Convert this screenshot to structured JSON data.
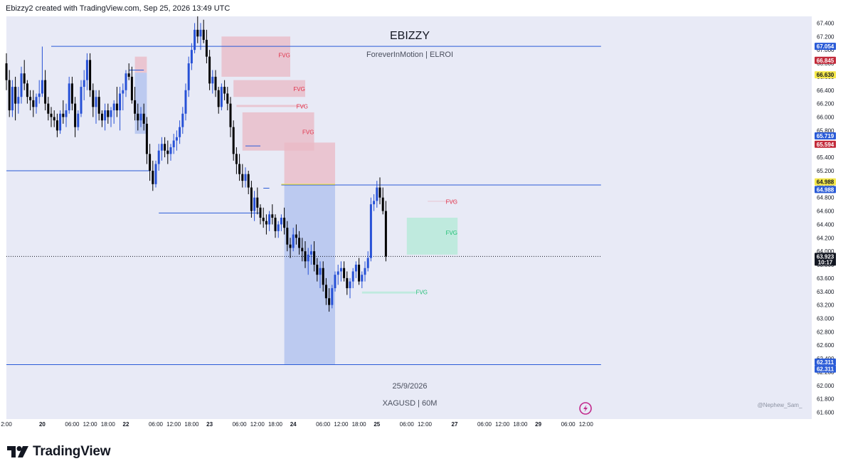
{
  "header": {
    "caption": "Ebizzy2 created with TradingView.com, Sep 25, 2026 13:49 UTC"
  },
  "watermark": {
    "title": "EBIZZY",
    "subtitle": "ForeverInMotion | ELROI",
    "date": "25/9/2026",
    "symbol": "XAGUSD | 60M",
    "credit": "@Nephew_Sam_"
  },
  "footer": {
    "brand": "TradingView"
  },
  "colors": {
    "background": "#e8eaf6",
    "bull": "#2751d6",
    "bear": "#000000",
    "blue_line": "#2a5bd7",
    "bear_fvg": "#e9b8c4",
    "bull_fvg": "#b2ead6",
    "discount_zone": "#aebfee",
    "premium_zone": "#ebb8c4",
    "fvg_red_text": "#e0324a",
    "fvg_green_text": "#1fbf74",
    "yellow": "#f5e84a",
    "red_tag": "#c22a3a"
  },
  "chart_data": {
    "type": "candlestick",
    "symbol": "XAGUSD",
    "timeframe": "60M",
    "ylim": [
      61.5,
      67.5
    ],
    "y_ticks": [
      "67.400",
      "67.200",
      "67.000",
      "66.800",
      "66.600",
      "66.400",
      "66.200",
      "66.000",
      "65.800",
      "65.600",
      "65.400",
      "65.200",
      "65.000",
      "64.800",
      "64.600",
      "64.400",
      "64.200",
      "64.000",
      "63.800",
      "63.600",
      "63.400",
      "63.200",
      "63.000",
      "62.800",
      "62.600",
      "62.400",
      "62.200",
      "62.000",
      "61.800",
      "61.600"
    ],
    "x_ticks": [
      {
        "label": "2:00",
        "i": 0
      },
      {
        "label": "20",
        "i": 12
      },
      {
        "label": "06:00",
        "i": 22
      },
      {
        "label": "12:00",
        "i": 28
      },
      {
        "label": "18:00",
        "i": 34
      },
      {
        "label": "22",
        "i": 40
      },
      {
        "label": "06:00",
        "i": 50
      },
      {
        "label": "12:00",
        "i": 56
      },
      {
        "label": "18:00",
        "i": 62
      },
      {
        "label": "23",
        "i": 68
      },
      {
        "label": "06:00",
        "i": 78
      },
      {
        "label": "12:00",
        "i": 84
      },
      {
        "label": "18:00",
        "i": 90
      },
      {
        "label": "24",
        "i": 96
      },
      {
        "label": "06:00",
        "i": 106
      },
      {
        "label": "12:00",
        "i": 112
      },
      {
        "label": "18:00",
        "i": 118
      },
      {
        "label": "25",
        "i": 124
      },
      {
        "label": "06:00",
        "i": 134
      },
      {
        "label": "12:00",
        "i": 140
      },
      {
        "label": "27",
        "i": 150
      },
      {
        "label": "06:00",
        "i": 160
      },
      {
        "label": "12:00",
        "i": 166
      },
      {
        "label": "18:00",
        "i": 172
      },
      {
        "label": "29",
        "i": 178
      },
      {
        "label": "06:00",
        "i": 188
      },
      {
        "label": "12:00",
        "i": 194
      }
    ],
    "price_tags": [
      {
        "label": "67.054",
        "price": 67.054,
        "bg": "#2a5bd7",
        "fg": "#ffffff"
      },
      {
        "label": "66.845",
        "price": 66.845,
        "bg": "#c22a3a",
        "fg": "#ffffff"
      },
      {
        "label": "66.630",
        "price": 66.63,
        "bg": "#f5e84a",
        "fg": "#131722"
      },
      {
        "label": "65.719",
        "price": 65.719,
        "bg": "#2a5bd7",
        "fg": "#ffffff"
      },
      {
        "label": "65.594",
        "price": 65.594,
        "bg": "#c22a3a",
        "fg": "#ffffff"
      },
      {
        "label": "64.988",
        "price": 65.034,
        "bg": "#f5e84a",
        "fg": "#131722"
      },
      {
        "label": "64.988",
        "price": 64.92,
        "bg": "#2a5bd7",
        "fg": "#ffffff"
      },
      {
        "label": "63.923",
        "price": 63.923,
        "bg": "#131722",
        "fg": "#ffffff",
        "sub": "10:17"
      },
      {
        "label": "62.311",
        "price": 62.35,
        "bg": "#2a5bd7",
        "fg": "#ffffff"
      },
      {
        "label": "62.311",
        "price": 62.245,
        "bg": "#2a5bd7",
        "fg": "#ffffff"
      }
    ],
    "hlines": [
      {
        "price": 67.054,
        "from": 15,
        "to": 199,
        "color": "#2a5bd7"
      },
      {
        "price": 65.2,
        "from": -2,
        "to": 48,
        "color": "#2a5bd7"
      },
      {
        "price": 64.988,
        "from": 92,
        "to": 199,
        "color": "#2a5bd7"
      },
      {
        "price": 62.311,
        "from": -2,
        "to": 199,
        "color": "#2a5bd7"
      },
      {
        "price": 64.57,
        "from": 51,
        "to": 85,
        "color": "#2a5bd7"
      },
      {
        "price": 66.7,
        "from": 41,
        "to": 46,
        "color": "#2a5bd7"
      },
      {
        "price": 65.57,
        "from": 80,
        "to": 85,
        "color": "#2a5bd7"
      },
      {
        "price": 64.94,
        "from": 86,
        "to": 88,
        "color": "#2a5bd7"
      },
      {
        "price": 63.923,
        "from": -2,
        "to": 199,
        "color": "#131722",
        "dotted": true
      }
    ],
    "zones": [
      {
        "kind": "premium",
        "x1": 93,
        "x2": 110,
        "top": 65.62,
        "bottom": 64.988,
        "color": "#ebb8c4"
      },
      {
        "kind": "discount",
        "x1": 93,
        "x2": 110,
        "top": 64.988,
        "bottom": 62.311,
        "color": "#aebfee"
      },
      {
        "kind": "bear-ob",
        "x1": 43,
        "x2": 47,
        "top": 66.9,
        "bottom": 66.66,
        "color": "#ebb8c4"
      },
      {
        "kind": "bull-ob",
        "x1": 43,
        "x2": 47,
        "top": 66.66,
        "bottom": 65.75,
        "color": "#aebfee"
      },
      {
        "kind": "bear-fvg",
        "x1": 72,
        "x2": 95,
        "top": 67.2,
        "bottom": 66.6,
        "color": "#e9b8c4"
      },
      {
        "kind": "bear-fvg",
        "x1": 76,
        "x2": 100,
        "top": 66.55,
        "bottom": 66.3,
        "color": "#e9b8c4"
      },
      {
        "kind": "bear-fvg",
        "x1": 77,
        "x2": 100,
        "top": 66.18,
        "bottom": 66.15,
        "color": "#e9b8c4"
      },
      {
        "kind": "bear-fvg",
        "x1": 79,
        "x2": 103,
        "top": 66.07,
        "bottom": 65.5,
        "color": "#e9b8c4"
      },
      {
        "kind": "bear-fvg",
        "x1": 141,
        "x2": 151,
        "top": 64.75,
        "bottom": 64.74,
        "color": "#e9b8c4"
      },
      {
        "kind": "bull-fvg",
        "x1": 134,
        "x2": 151,
        "top": 64.5,
        "bottom": 63.95,
        "color": "#b2ead6"
      },
      {
        "kind": "bull-fvg",
        "x1": 119,
        "x2": 137,
        "top": 63.4,
        "bottom": 63.37,
        "color": "#b2ead6"
      }
    ],
    "fvg_labels": [
      {
        "text": "FVG",
        "i": 93,
        "price": 66.92,
        "color": "#e0324a"
      },
      {
        "text": "FVG",
        "i": 98,
        "price": 66.42,
        "color": "#e0324a"
      },
      {
        "text": "FVG",
        "i": 99,
        "price": 66.16,
        "color": "#e0324a"
      },
      {
        "text": "FVG",
        "i": 101,
        "price": 65.78,
        "color": "#e0324a"
      },
      {
        "text": "FVG",
        "i": 149,
        "price": 64.74,
        "color": "#e0324a"
      },
      {
        "text": "FVG",
        "i": 149,
        "price": 64.28,
        "color": "#1fbf74"
      },
      {
        "text": "FVG",
        "i": 139,
        "price": 63.39,
        "color": "#1fbf74"
      }
    ],
    "candles": [
      [
        66.8,
        66.95,
        66.4,
        66.55
      ],
      [
        66.55,
        66.7,
        66.0,
        66.1
      ],
      [
        66.1,
        66.55,
        66.0,
        66.45
      ],
      [
        66.45,
        66.6,
        65.95,
        66.2
      ],
      [
        66.2,
        66.45,
        66.05,
        66.3
      ],
      [
        66.3,
        66.75,
        66.2,
        66.65
      ],
      [
        66.65,
        66.85,
        66.4,
        66.5
      ],
      [
        66.5,
        66.55,
        66.2,
        66.3
      ],
      [
        66.3,
        66.4,
        66.1,
        66.25
      ],
      [
        66.25,
        66.4,
        66.0,
        66.15
      ],
      [
        66.15,
        66.35,
        66.05,
        66.3
      ],
      [
        66.3,
        66.55,
        66.2,
        66.35
      ],
      [
        66.35,
        67.05,
        66.3,
        66.55
      ],
      [
        66.55,
        66.7,
        66.1,
        66.2
      ],
      [
        66.2,
        66.3,
        65.95,
        66.05
      ],
      [
        66.05,
        66.15,
        65.85,
        66.0
      ],
      [
        66.0,
        66.1,
        65.85,
        65.95
      ],
      [
        65.95,
        66.05,
        65.7,
        65.8
      ],
      [
        65.8,
        66.1,
        65.75,
        66.05
      ],
      [
        66.05,
        66.25,
        65.9,
        66.0
      ],
      [
        66.0,
        66.2,
        65.85,
        66.1
      ],
      [
        66.1,
        66.6,
        66.05,
        66.5
      ],
      [
        66.5,
        66.6,
        66.1,
        66.2
      ],
      [
        66.2,
        66.3,
        65.7,
        65.85
      ],
      [
        65.85,
        66.1,
        65.8,
        66.05
      ],
      [
        66.05,
        66.55,
        66.0,
        66.45
      ],
      [
        66.45,
        66.7,
        66.25,
        66.55
      ],
      [
        66.55,
        66.95,
        66.4,
        66.85
      ],
      [
        66.85,
        66.95,
        66.3,
        66.4
      ],
      [
        66.4,
        66.5,
        66.0,
        66.15
      ],
      [
        66.15,
        66.4,
        65.9,
        66.3
      ],
      [
        66.3,
        66.4,
        65.95,
        66.05
      ],
      [
        66.05,
        66.1,
        65.85,
        65.95
      ],
      [
        65.95,
        66.2,
        65.8,
        66.1
      ],
      [
        66.1,
        66.2,
        65.9,
        66.0
      ],
      [
        66.0,
        66.15,
        65.85,
        66.1
      ],
      [
        66.1,
        66.25,
        65.9,
        66.2
      ],
      [
        66.2,
        66.45,
        66.0,
        66.1
      ],
      [
        66.1,
        66.45,
        65.8,
        66.35
      ],
      [
        66.35,
        66.5,
        66.1,
        66.4
      ],
      [
        66.4,
        66.7,
        66.3,
        66.65
      ],
      [
        66.65,
        66.8,
        66.55,
        66.6
      ],
      [
        66.6,
        66.75,
        66.2,
        66.25
      ],
      [
        66.25,
        66.45,
        65.95,
        66.05
      ],
      [
        66.05,
        66.2,
        65.8,
        65.95
      ],
      [
        65.95,
        66.15,
        65.85,
        66.05
      ],
      [
        66.05,
        66.2,
        65.8,
        65.9
      ],
      [
        65.9,
        66.0,
        65.3,
        65.45
      ],
      [
        65.45,
        65.6,
        65.05,
        65.2
      ],
      [
        65.2,
        65.35,
        64.9,
        65.0
      ],
      [
        65.0,
        65.35,
        64.95,
        65.3
      ],
      [
        65.3,
        65.6,
        65.2,
        65.5
      ],
      [
        65.5,
        65.7,
        65.35,
        65.6
      ],
      [
        65.6,
        65.7,
        65.4,
        65.5
      ],
      [
        65.5,
        65.65,
        65.3,
        65.45
      ],
      [
        65.45,
        65.6,
        65.35,
        65.55
      ],
      [
        65.55,
        65.75,
        65.45,
        65.65
      ],
      [
        65.65,
        65.8,
        65.5,
        65.7
      ],
      [
        65.7,
        65.95,
        65.6,
        65.85
      ],
      [
        65.85,
        66.15,
        65.75,
        66.05
      ],
      [
        66.05,
        66.5,
        65.95,
        66.4
      ],
      [
        66.4,
        66.9,
        66.3,
        66.8
      ],
      [
        66.8,
        67.1,
        66.7,
        67.0
      ],
      [
        67.0,
        67.4,
        66.95,
        67.3
      ],
      [
        67.3,
        67.5,
        67.1,
        67.2
      ],
      [
        67.2,
        67.4,
        67.0,
        67.3
      ],
      [
        67.3,
        67.45,
        67.1,
        67.15
      ],
      [
        67.15,
        67.3,
        66.8,
        66.9
      ],
      [
        66.9,
        67.0,
        66.4,
        66.5
      ],
      [
        66.5,
        66.7,
        66.35,
        66.6
      ],
      [
        66.6,
        66.7,
        66.3,
        66.4
      ],
      [
        66.4,
        66.45,
        66.05,
        66.15
      ],
      [
        66.15,
        66.5,
        66.1,
        66.45
      ],
      [
        66.45,
        66.55,
        66.25,
        66.35
      ],
      [
        66.35,
        66.45,
        66.1,
        66.2
      ],
      [
        66.2,
        66.3,
        65.7,
        65.85
      ],
      [
        65.85,
        65.95,
        65.35,
        65.45
      ],
      [
        65.45,
        65.55,
        65.15,
        65.3
      ],
      [
        65.3,
        65.45,
        65.05,
        65.15
      ],
      [
        65.15,
        65.3,
        64.95,
        65.05
      ],
      [
        65.05,
        65.25,
        64.95,
        65.15
      ],
      [
        65.15,
        65.2,
        64.85,
        64.95
      ],
      [
        64.95,
        65.05,
        64.5,
        64.6
      ],
      [
        64.6,
        64.9,
        64.45,
        64.8
      ],
      [
        64.8,
        64.95,
        64.55,
        64.65
      ],
      [
        64.65,
        64.7,
        64.4,
        64.5
      ],
      [
        64.5,
        64.65,
        64.35,
        64.45
      ],
      [
        64.45,
        64.55,
        64.25,
        64.4
      ],
      [
        64.4,
        64.6,
        64.3,
        64.55
      ],
      [
        64.55,
        64.7,
        64.4,
        64.5
      ],
      [
        64.5,
        64.55,
        64.2,
        64.3
      ],
      [
        64.3,
        64.45,
        64.2,
        64.4
      ],
      [
        64.4,
        64.55,
        64.3,
        64.5
      ],
      [
        64.5,
        64.65,
        64.25,
        64.35
      ],
      [
        64.35,
        64.45,
        64.0,
        64.1
      ],
      [
        64.1,
        64.2,
        63.9,
        64.05
      ],
      [
        64.05,
        64.35,
        64.0,
        64.25
      ],
      [
        64.25,
        64.4,
        64.1,
        64.2
      ],
      [
        64.2,
        64.3,
        63.95,
        64.05
      ],
      [
        64.05,
        64.2,
        63.85,
        64.0
      ],
      [
        64.0,
        64.15,
        63.75,
        63.85
      ],
      [
        63.85,
        64.05,
        63.65,
        63.95
      ],
      [
        63.95,
        64.1,
        63.8,
        64.0
      ],
      [
        64.0,
        64.15,
        63.7,
        63.8
      ],
      [
        63.8,
        63.9,
        63.55,
        63.65
      ],
      [
        63.65,
        63.85,
        63.45,
        63.75
      ],
      [
        63.75,
        63.85,
        63.4,
        63.5
      ],
      [
        63.5,
        63.6,
        63.2,
        63.3
      ],
      [
        63.3,
        63.45,
        63.1,
        63.2
      ],
      [
        63.2,
        63.5,
        63.15,
        63.45
      ],
      [
        63.45,
        63.7,
        63.4,
        63.65
      ],
      [
        63.65,
        63.8,
        63.5,
        63.7
      ],
      [
        63.7,
        63.85,
        63.55,
        63.75
      ],
      [
        63.75,
        63.85,
        63.55,
        63.6
      ],
      [
        63.6,
        63.7,
        63.35,
        63.45
      ],
      [
        63.45,
        63.6,
        63.3,
        63.55
      ],
      [
        63.55,
        63.75,
        63.45,
        63.7
      ],
      [
        63.7,
        63.85,
        63.6,
        63.8
      ],
      [
        63.8,
        63.9,
        63.5,
        63.55
      ],
      [
        63.55,
        63.7,
        63.45,
        63.65
      ],
      [
        63.65,
        63.85,
        63.55,
        63.75
      ],
      [
        63.75,
        64.0,
        63.7,
        63.9
      ],
      [
        63.9,
        64.8,
        63.85,
        64.7
      ],
      [
        64.7,
        64.85,
        64.6,
        64.75
      ],
      [
        64.75,
        65.05,
        64.65,
        64.95
      ],
      [
        64.95,
        65.1,
        64.7,
        64.8
      ],
      [
        64.8,
        64.95,
        64.55,
        64.6
      ],
      [
        64.6,
        64.75,
        63.85,
        63.923
      ]
    ],
    "candle_x0": 9,
    "candle_dx": 4.2
  }
}
